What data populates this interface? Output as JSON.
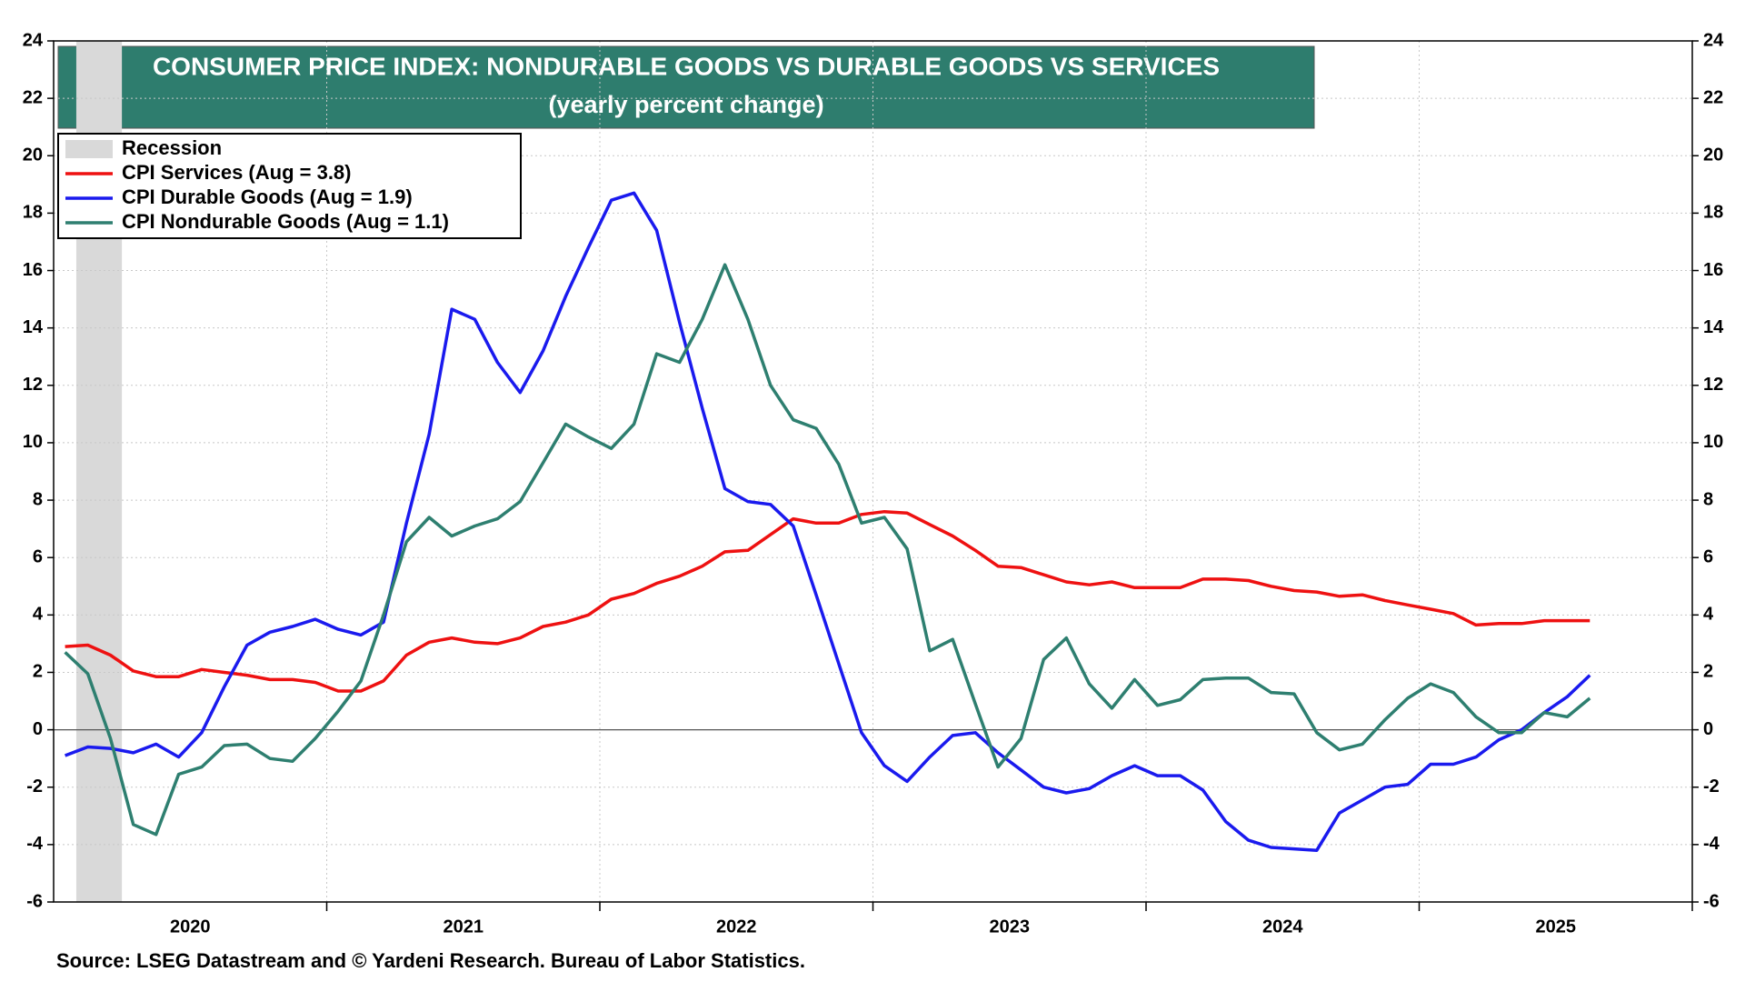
{
  "chart_data": {
    "type": "line",
    "title": "CONSUMER PRICE INDEX: NONDURABLE GOODS VS DURABLE GOODS VS SERVICES",
    "subtitle": "(yearly percent change)",
    "source": "Source: LSEG Datastream and © Yardeni Research. Bureau of Labor Statistics.",
    "recession": {
      "label": "Recession",
      "start": 2020.083,
      "end": 2020.25,
      "color": "#d9d9d9"
    },
    "x": [
      2020.042,
      2020.125,
      2020.208,
      2020.292,
      2020.375,
      2020.458,
      2020.542,
      2020.625,
      2020.708,
      2020.792,
      2020.875,
      2020.958,
      2021.042,
      2021.125,
      2021.208,
      2021.292,
      2021.375,
      2021.458,
      2021.542,
      2021.625,
      2021.708,
      2021.792,
      2021.875,
      2021.958,
      2022.042,
      2022.125,
      2022.208,
      2022.292,
      2022.375,
      2022.458,
      2022.542,
      2022.625,
      2022.708,
      2022.792,
      2022.875,
      2022.958,
      2023.042,
      2023.125,
      2023.208,
      2023.292,
      2023.375,
      2023.458,
      2023.542,
      2023.625,
      2023.708,
      2023.792,
      2023.875,
      2023.958,
      2024.042,
      2024.125,
      2024.208,
      2024.292,
      2024.375,
      2024.458,
      2024.542,
      2024.625,
      2024.708,
      2024.792,
      2024.875,
      2024.958,
      2025.042,
      2025.125,
      2025.208,
      2025.292,
      2025.375,
      2025.458,
      2025.542,
      2025.625
    ],
    "series": [
      {
        "name": "CPI Services (Aug = 3.8)",
        "color": "#ee1111",
        "values": [
          2.9,
          2.95,
          2.6,
          2.05,
          1.85,
          1.85,
          2.1,
          2.0,
          1.9,
          1.75,
          1.75,
          1.65,
          1.35,
          1.35,
          1.7,
          2.6,
          3.05,
          3.2,
          3.05,
          3.0,
          3.2,
          3.6,
          3.75,
          4.0,
          4.55,
          4.75,
          5.1,
          5.35,
          5.7,
          6.2,
          6.25,
          6.8,
          7.35,
          7.2,
          7.2,
          7.5,
          7.6,
          7.55,
          7.15,
          6.75,
          6.25,
          5.7,
          5.65,
          5.4,
          5.15,
          5.05,
          5.15,
          4.95,
          4.95,
          4.95,
          5.25,
          5.25,
          5.2,
          5.0,
          4.85,
          4.8,
          4.65,
          4.7,
          4.5,
          4.35,
          4.2,
          4.05,
          3.65,
          3.7,
          3.7,
          3.8,
          3.8,
          3.8
        ]
      },
      {
        "name": "CPI Durable Goods (Aug = 1.9)",
        "color": "#1a1aee",
        "values": [
          -0.9,
          -0.6,
          -0.65,
          -0.8,
          -0.5,
          -0.95,
          -0.1,
          1.5,
          2.95,
          3.4,
          3.6,
          3.85,
          3.5,
          3.3,
          3.75,
          7.2,
          10.3,
          14.65,
          14.3,
          12.8,
          11.75,
          13.2,
          15.1,
          16.8,
          18.45,
          18.7,
          17.4,
          14.2,
          11.2,
          8.4,
          7.95,
          7.85,
          7.1,
          4.7,
          2.3,
          -0.1,
          -1.25,
          -1.8,
          -0.95,
          -0.2,
          -0.1,
          -0.8,
          -1.4,
          -2.0,
          -2.2,
          -2.05,
          -1.6,
          -1.25,
          -1.6,
          -1.6,
          -2.1,
          -3.2,
          -3.85,
          -4.1,
          -4.15,
          -4.2,
          -2.9,
          -2.45,
          -2.0,
          -1.9,
          -1.2,
          -1.2,
          -0.95,
          -0.35,
          0.0,
          0.6,
          1.15,
          1.9
        ]
      },
      {
        "name": "CPI Nondurable Goods (Aug = 1.1)",
        "color": "#2e7f70",
        "values": [
          2.7,
          1.95,
          -0.3,
          -3.3,
          -3.65,
          -1.55,
          -1.3,
          -0.55,
          -0.5,
          -1.0,
          -1.1,
          -0.3,
          0.65,
          1.7,
          4.0,
          6.55,
          7.4,
          6.75,
          7.1,
          7.35,
          7.95,
          9.3,
          10.65,
          10.2,
          9.8,
          10.65,
          13.1,
          12.8,
          14.3,
          16.2,
          14.3,
          12.0,
          10.8,
          10.5,
          9.25,
          7.2,
          7.4,
          6.3,
          2.75,
          3.15,
          0.9,
          -1.3,
          -0.3,
          2.45,
          3.2,
          1.6,
          0.75,
          1.75,
          0.85,
          1.05,
          1.75,
          1.8,
          1.8,
          1.3,
          1.25,
          -0.1,
          -0.7,
          -0.5,
          0.35,
          1.1,
          1.6,
          1.3,
          0.45,
          -0.1,
          -0.1,
          0.6,
          0.45,
          1.1
        ]
      }
    ],
    "xlim": [
      2020,
      2026
    ],
    "xticks": [
      {
        "value": 2020.5,
        "label": "2020"
      },
      {
        "value": 2021.5,
        "label": "2021"
      },
      {
        "value": 2022.5,
        "label": "2022"
      },
      {
        "value": 2023.5,
        "label": "2023"
      },
      {
        "value": 2024.5,
        "label": "2024"
      },
      {
        "value": 2025.5,
        "label": "2025"
      }
    ],
    "xgrid": [
      2021,
      2022,
      2023,
      2024,
      2025,
      2026
    ],
    "ylim": [
      -6,
      24
    ],
    "yticks": [
      -6,
      -4,
      -2,
      0,
      2,
      4,
      6,
      8,
      10,
      12,
      14,
      16,
      18,
      20,
      22,
      24
    ],
    "grid": true,
    "title_color": "#2e7d6e"
  }
}
